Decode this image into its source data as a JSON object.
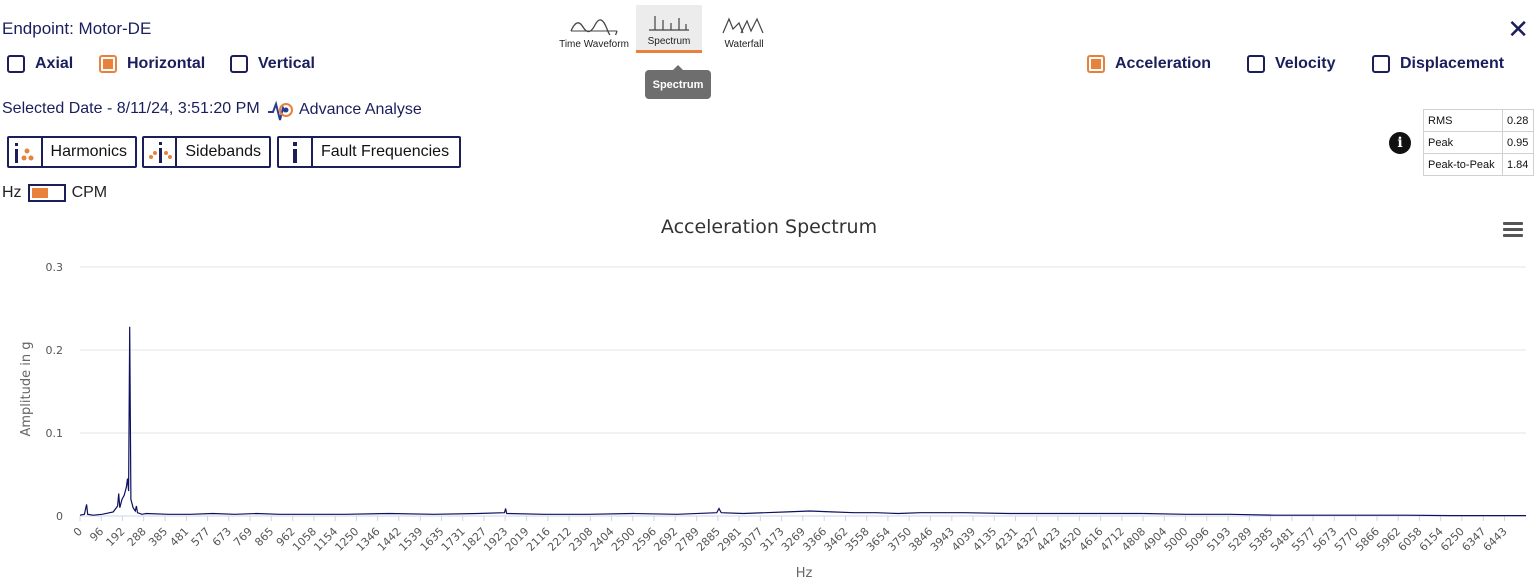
{
  "header": {
    "title": "Endpoint: Motor-DE",
    "close_icon": "close-icon"
  },
  "axes_options": [
    {
      "label": "Axial",
      "checked": false
    },
    {
      "label": "Horizontal",
      "checked": true
    },
    {
      "label": "Vertical",
      "checked": false
    }
  ],
  "measure_options": [
    {
      "label": "Acceleration",
      "checked": true
    },
    {
      "label": "Velocity",
      "checked": false
    },
    {
      "label": "Displacement",
      "checked": false
    }
  ],
  "views": [
    {
      "label": "Time Waveform",
      "icon": "waveform-icon",
      "active": false
    },
    {
      "label": "Spectrum",
      "icon": "spectrum-icon",
      "active": true
    },
    {
      "label": "Waterfall",
      "icon": "waterfall-icon",
      "active": false
    }
  ],
  "tooltip": "Spectrum",
  "selected_date": "Selected Date - 8/11/24, 3:51:20 PM",
  "advance_analyse": "Advance Analyse",
  "tools": [
    {
      "label": "Harmonics",
      "icon": "harmonics-icon"
    },
    {
      "label": "Sidebands",
      "icon": "sidebands-icon"
    },
    {
      "label": "Fault Frequencies",
      "icon": "fault-frequencies-icon"
    }
  ],
  "unit_toggle": {
    "left": "Hz",
    "right": "CPM"
  },
  "stats": [
    {
      "label": "RMS",
      "value": "0.28"
    },
    {
      "label": "Peak",
      "value": "0.95"
    },
    {
      "label": "Peak-to-Peak",
      "value": "1.84"
    }
  ],
  "colors": {
    "accent": "#e8813b",
    "navy": "#1a1f5c",
    "series": "#0d1160"
  },
  "chart_data": {
    "type": "line",
    "title": "Acceleration Spectrum",
    "xlabel": "Hz",
    "ylabel": "Amplitude in g",
    "ylim": [
      0,
      0.3
    ],
    "yticks": [
      "0",
      "0.1",
      "0.2",
      "0.3"
    ],
    "xlim": [
      0,
      6540
    ],
    "xticks": [
      0,
      96,
      192,
      288,
      385,
      481,
      577,
      673,
      769,
      865,
      962,
      1058,
      1154,
      1250,
      1346,
      1442,
      1539,
      1635,
      1731,
      1827,
      1923,
      2019,
      2116,
      2212,
      2308,
      2404,
      2500,
      2596,
      2692,
      2789,
      2885,
      2981,
      3077,
      3173,
      3269,
      3366,
      3462,
      3558,
      3654,
      3750,
      3846,
      3943,
      4039,
      4135,
      4231,
      4327,
      4423,
      4520,
      4616,
      4712,
      4808,
      4904,
      5000,
      5096,
      5193,
      5289,
      5385,
      5481,
      5577,
      5673,
      5770,
      5866,
      5962,
      6058,
      6154,
      6250,
      6347,
      6443
    ],
    "grid": "horizontal",
    "series": [
      {
        "points": [
          [
            0,
            0.001
          ],
          [
            20,
            0.002
          ],
          [
            30,
            0.014
          ],
          [
            35,
            0.002
          ],
          [
            60,
            0.001
          ],
          [
            100,
            0.002
          ],
          [
            150,
            0.005
          ],
          [
            170,
            0.012
          ],
          [
            175,
            0.027
          ],
          [
            180,
            0.01
          ],
          [
            190,
            0.02
          ],
          [
            200,
            0.025
          ],
          [
            210,
            0.035
          ],
          [
            215,
            0.045
          ],
          [
            220,
            0.03
          ],
          [
            225,
            0.228
          ],
          [
            230,
            0.02
          ],
          [
            240,
            0.01
          ],
          [
            250,
            0.006
          ],
          [
            255,
            0.012
          ],
          [
            260,
            0.004
          ],
          [
            280,
            0.002
          ],
          [
            300,
            0.003
          ],
          [
            400,
            0.002
          ],
          [
            500,
            0.002
          ],
          [
            600,
            0.003
          ],
          [
            700,
            0.002
          ],
          [
            800,
            0.003
          ],
          [
            900,
            0.002
          ],
          [
            1000,
            0.002
          ],
          [
            1200,
            0.002
          ],
          [
            1400,
            0.003
          ],
          [
            1600,
            0.002
          ],
          [
            1800,
            0.003
          ],
          [
            1920,
            0.004
          ],
          [
            1925,
            0.009
          ],
          [
            1930,
            0.003
          ],
          [
            2100,
            0.002
          ],
          [
            2300,
            0.002
          ],
          [
            2500,
            0.003
          ],
          [
            2700,
            0.002
          ],
          [
            2880,
            0.004
          ],
          [
            2890,
            0.009
          ],
          [
            2900,
            0.004
          ],
          [
            3000,
            0.003
          ],
          [
            3100,
            0.004
          ],
          [
            3200,
            0.005
          ],
          [
            3300,
            0.006
          ],
          [
            3400,
            0.005
          ],
          [
            3500,
            0.004
          ],
          [
            3600,
            0.004
          ],
          [
            3700,
            0.003
          ],
          [
            3800,
            0.004
          ],
          [
            3900,
            0.004
          ],
          [
            4000,
            0.004
          ],
          [
            4200,
            0.003
          ],
          [
            4400,
            0.003
          ],
          [
            4600,
            0.003
          ],
          [
            4800,
            0.003
          ],
          [
            5000,
            0.002
          ],
          [
            5200,
            0.002
          ],
          [
            5400,
            0.001
          ],
          [
            5600,
            0.001
          ],
          [
            5800,
            0.001
          ],
          [
            6000,
            0.001
          ],
          [
            6200,
            0.0005
          ],
          [
            6540,
            0.0005
          ]
        ]
      }
    ]
  }
}
